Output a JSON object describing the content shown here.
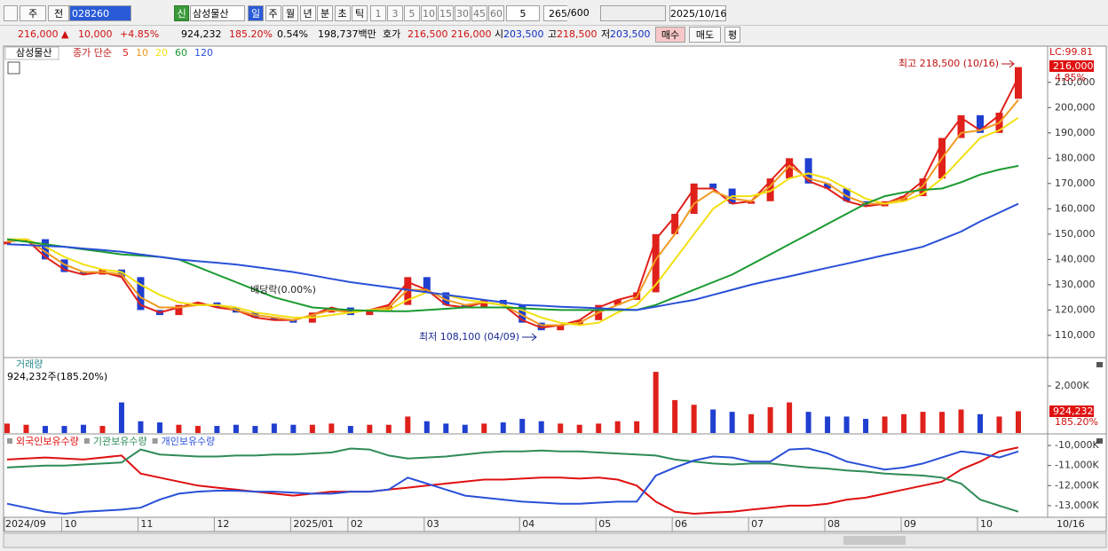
{
  "toolbar": {
    "market": "주",
    "scope": "전",
    "code": "028260",
    "badge": "신",
    "name": "삼성물산",
    "periods": [
      "일",
      "주",
      "월",
      "년",
      "분",
      "초",
      "틱"
    ],
    "intervals": [
      "1",
      "3",
      "5",
      "10",
      "15",
      "30",
      "45",
      "60"
    ],
    "interval_input": "5",
    "bar_count": "265",
    "bar_max": "/600",
    "date": "2025/10/16"
  },
  "quote": {
    "price": "216,000 ▲",
    "change": "10,000",
    "change_pct": "+4.85%",
    "volume": "924,232",
    "volume_ratio": "185.20%",
    "turnover": "0.54%",
    "amount": "198,737백만",
    "ask_label": "호가",
    "ask": "216,500",
    "bid": "216,000",
    "open_label": "시",
    "open": "203,500",
    "high_label": "고",
    "high": "218,500",
    "low_label": "저",
    "low": "203,500",
    "buy": "매수",
    "sell": "매도",
    "avg": "평"
  },
  "chart_data": [
    {
      "type": "candlestick",
      "title": "삼성물산",
      "subtitle": "종가 단순",
      "lc_label": "LC:99.81",
      "last_close_label": "216,000",
      "last_change_label": "4.85%",
      "up_color": "#e0201b",
      "down_color": "#1f3fd0",
      "open": [
        146000,
        147000,
        148000,
        140000,
        135000,
        134000,
        136000,
        133000,
        120000,
        118000,
        122000,
        123000,
        121000,
        119000,
        117000,
        116000,
        115000,
        119000,
        121000,
        118000,
        120000,
        122000,
        133000,
        127000,
        122000,
        121000,
        124000,
        122000,
        115000,
        112000,
        114000,
        116000,
        122000,
        124000,
        127000,
        150000,
        158000,
        170000,
        168000,
        162000,
        163000,
        172000,
        180000,
        170000,
        168000,
        163000,
        161000,
        163000,
        165000,
        172000,
        188000,
        197000,
        190000,
        203500
      ],
      "close": [
        147000,
        148000,
        140000,
        135000,
        134000,
        136000,
        133000,
        120000,
        118000,
        122000,
        123000,
        121000,
        119000,
        117000,
        116000,
        115000,
        119000,
        121000,
        118000,
        120000,
        122000,
        133000,
        127000,
        122000,
        121000,
        124000,
        122000,
        115000,
        112000,
        114000,
        116000,
        122000,
        124000,
        127000,
        150000,
        158000,
        170000,
        168000,
        162000,
        163000,
        172000,
        180000,
        170000,
        168000,
        163000,
        161000,
        163000,
        165000,
        172000,
        188000,
        197000,
        190000,
        198000,
        216000
      ],
      "series": [
        {
          "name": "5",
          "color": "#e0201b",
          "values": [
            147000,
            148000,
            141000,
            136000,
            134000,
            135000,
            133000,
            122000,
            119000,
            121000,
            123000,
            121000,
            120000,
            117000,
            116000,
            116000,
            118000,
            121000,
            119000,
            120000,
            122000,
            131000,
            128000,
            122000,
            121000,
            123000,
            122000,
            116000,
            113000,
            114000,
            116000,
            121000,
            124000,
            126000,
            148000,
            157000,
            168000,
            168000,
            162000,
            163000,
            171000,
            179000,
            171000,
            168000,
            163000,
            161000,
            162000,
            165000,
            171000,
            186000,
            196000,
            191000,
            197000,
            212000
          ]
        },
        {
          "name": "10",
          "color": "#f09a20",
          "values": [
            147000,
            148000,
            143000,
            138000,
            135000,
            135000,
            134000,
            125000,
            121000,
            121000,
            122000,
            122000,
            120000,
            118000,
            117000,
            116000,
            118000,
            120000,
            119000,
            120000,
            121000,
            128000,
            128000,
            124000,
            122000,
            123000,
            122000,
            118000,
            114000,
            114000,
            115000,
            119000,
            122000,
            125000,
            140000,
            150000,
            162000,
            167000,
            164000,
            163000,
            169000,
            177000,
            172000,
            170000,
            165000,
            162000,
            162000,
            164000,
            169000,
            180000,
            190000,
            191000,
            194000,
            203000
          ]
        },
        {
          "name": "20",
          "color": "#f2e012",
          "values": [
            148000,
            148000,
            145000,
            141000,
            138000,
            136000,
            135000,
            130000,
            126000,
            123000,
            122000,
            122000,
            121000,
            119000,
            118000,
            117000,
            117000,
            118000,
            119000,
            120000,
            120000,
            124000,
            127000,
            126000,
            124000,
            123000,
            122000,
            120000,
            117000,
            115000,
            114000,
            115000,
            119000,
            122000,
            130000,
            140000,
            150000,
            160000,
            165000,
            165000,
            167000,
            172000,
            174000,
            172000,
            168000,
            164000,
            162000,
            163000,
            166000,
            172000,
            180000,
            188000,
            191000,
            196000
          ]
        },
        {
          "name": "60",
          "color": "#1a9a30",
          "values": [
            148000,
            147000,
            146000,
            145000,
            144000,
            143000,
            142000,
            141500,
            141000,
            140000,
            137000,
            134000,
            131000,
            128000,
            125000,
            123000,
            121000,
            120500,
            120000,
            119700,
            119500,
            119500,
            120000,
            120500,
            121000,
            121000,
            121000,
            120700,
            120300,
            120000,
            120000,
            120000,
            120000,
            120000,
            122000,
            125000,
            128000,
            131000,
            134000,
            138000,
            142000,
            146000,
            150000,
            154000,
            158000,
            162000,
            165000,
            166500,
            167500,
            168000,
            170500,
            173500,
            175500,
            177000
          ]
        },
        {
          "name": "120",
          "color": "#2a50d8",
          "values": [
            146000,
            145700,
            145300,
            145000,
            144300,
            143700,
            143000,
            142000,
            141000,
            140000,
            139300,
            138700,
            138000,
            137000,
            136000,
            135000,
            133700,
            132300,
            131000,
            130000,
            129000,
            128000,
            127000,
            126000,
            125000,
            124000,
            123000,
            122000,
            121700,
            121300,
            121000,
            120700,
            120300,
            120000,
            121300,
            122700,
            124000,
            126000,
            128000,
            130000,
            131700,
            133300,
            135000,
            136700,
            138300,
            140000,
            141700,
            143300,
            145000,
            148000,
            151000,
            155000,
            158500,
            162000
          ]
        }
      ],
      "ylim": [
        101200,
        224300
      ],
      "yticks": [
        {
          "value": 110000,
          "label": "110,000"
        },
        {
          "value": 120000,
          "label": "120,000"
        },
        {
          "value": 130000,
          "label": "130,000"
        },
        {
          "value": 140000,
          "label": "140,000"
        },
        {
          "value": 150000,
          "label": "150,000"
        },
        {
          "value": 160000,
          "label": "160,000"
        },
        {
          "value": 170000,
          "label": "170,000"
        },
        {
          "value": 180000,
          "label": "180,000"
        },
        {
          "value": 190000,
          "label": "190,000"
        },
        {
          "value": 200000,
          "label": "200,000"
        },
        {
          "value": 210000,
          "label": "210,000"
        }
      ],
      "annotations": [
        {
          "text": "최고 218,500 (10/16)"
        },
        {
          "text": "최저 108,100 (04/09)"
        },
        {
          "text": "배당락(0.00%)"
        }
      ]
    },
    {
      "type": "bar",
      "title": "거래량",
      "subtitle": "924,232주(185.20%)",
      "last_value_label": "924,232",
      "last_ratio_label": "185.20%",
      "values": [
        400000,
        350000,
        300000,
        300000,
        350000,
        300000,
        1300000,
        500000,
        450000,
        350000,
        300000,
        300000,
        350000,
        300000,
        400000,
        350000,
        350000,
        400000,
        300000,
        350000,
        350000,
        700000,
        500000,
        400000,
        350000,
        400000,
        450000,
        600000,
        500000,
        400000,
        350000,
        400000,
        500000,
        500000,
        2600000,
        1400000,
        1200000,
        1000000,
        900000,
        800000,
        1100000,
        1300000,
        900000,
        700000,
        700000,
        600000,
        700000,
        800000,
        900000,
        900000,
        1000000,
        800000,
        700000,
        924232
      ],
      "ylim": [
        0,
        3170000
      ],
      "yticks": [
        {
          "value": 2000000,
          "label": "2,000K"
        }
      ]
    },
    {
      "type": "line",
      "categories": [
        "2024/09",
        null,
        null,
        "10",
        null,
        null,
        null,
        "11",
        null,
        null,
        null,
        "12",
        null,
        null,
        null,
        "2025/01",
        null,
        null,
        "02",
        null,
        null,
        null,
        "03",
        null,
        null,
        null,
        null,
        "04",
        null,
        null,
        null,
        "05",
        null,
        null,
        null,
        "06",
        null,
        null,
        null,
        "07",
        null,
        null,
        null,
        "08",
        null,
        null,
        null,
        "09",
        null,
        null,
        null,
        "10",
        null,
        null
      ],
      "axis_end_label": "10/16",
      "series": [
        {
          "name": "외국인보유수량",
          "color": "#e01010",
          "values": [
            -10700000,
            -10650000,
            -10600000,
            -10650000,
            -10700000,
            -10600000,
            -10500000,
            -11400000,
            -11600000,
            -11800000,
            -12000000,
            -12100000,
            -12200000,
            -12300000,
            -12400000,
            -12500000,
            -12400000,
            -12300000,
            -12300000,
            -12300000,
            -12200000,
            -12100000,
            -12000000,
            -11900000,
            -11800000,
            -11700000,
            -11700000,
            -11650000,
            -11600000,
            -11600000,
            -11650000,
            -11600000,
            -11700000,
            -12000000,
            -12800000,
            -13300000,
            -13400000,
            -13350000,
            -13300000,
            -13200000,
            -13100000,
            -13000000,
            -13000000,
            -12900000,
            -12700000,
            -12600000,
            -12400000,
            -12200000,
            -12000000,
            -11800000,
            -11200000,
            -10800000,
            -10300000,
            -10100000
          ]
        },
        {
          "name": "기관보유수량",
          "color": "#2e8b57",
          "values": [
            -11100000,
            -11050000,
            -11000000,
            -11000000,
            -10950000,
            -10900000,
            -10850000,
            -10200000,
            -10450000,
            -10500000,
            -10550000,
            -10550000,
            -10500000,
            -10500000,
            -10450000,
            -10450000,
            -10400000,
            -10350000,
            -10150000,
            -10200000,
            -10500000,
            -10650000,
            -10600000,
            -10550000,
            -10450000,
            -10350000,
            -10300000,
            -10300000,
            -10250000,
            -10300000,
            -10300000,
            -10350000,
            -10400000,
            -10450000,
            -10500000,
            -10700000,
            -10800000,
            -10900000,
            -10950000,
            -10900000,
            -10900000,
            -11000000,
            -11100000,
            -11150000,
            -11250000,
            -11300000,
            -11400000,
            -11450000,
            -11500000,
            -11600000,
            -11900000,
            -12700000,
            -13000000,
            -13300000
          ]
        },
        {
          "name": "개인보유수량",
          "color": "#2a50d8",
          "values": [
            -12900000,
            -13100000,
            -13300000,
            -13400000,
            -13300000,
            -13250000,
            -13200000,
            -13100000,
            -12700000,
            -12400000,
            -12300000,
            -12250000,
            -12250000,
            -12300000,
            -12300000,
            -12350000,
            -12400000,
            -12400000,
            -12300000,
            -12300000,
            -12200000,
            -11600000,
            -11900000,
            -12200000,
            -12500000,
            -12600000,
            -12700000,
            -12800000,
            -12850000,
            -12900000,
            -12900000,
            -12850000,
            -12800000,
            -12800000,
            -11500000,
            -11100000,
            -10750000,
            -10550000,
            -10600000,
            -10800000,
            -10800000,
            -10200000,
            -10150000,
            -10400000,
            -10800000,
            -11000000,
            -11200000,
            -11100000,
            -10900000,
            -10600000,
            -10300000,
            -10400000,
            -10600000,
            -10300000
          ]
        }
      ],
      "ylim": [
        -13578000,
        -9467000
      ],
      "yticks": [
        {
          "value": -10000000,
          "label": "-10,000K"
        },
        {
          "value": -11000000,
          "label": "-11,000K"
        },
        {
          "value": -12000000,
          "label": "-12,000K"
        },
        {
          "value": -13000000,
          "label": "-13,000K"
        }
      ]
    }
  ]
}
